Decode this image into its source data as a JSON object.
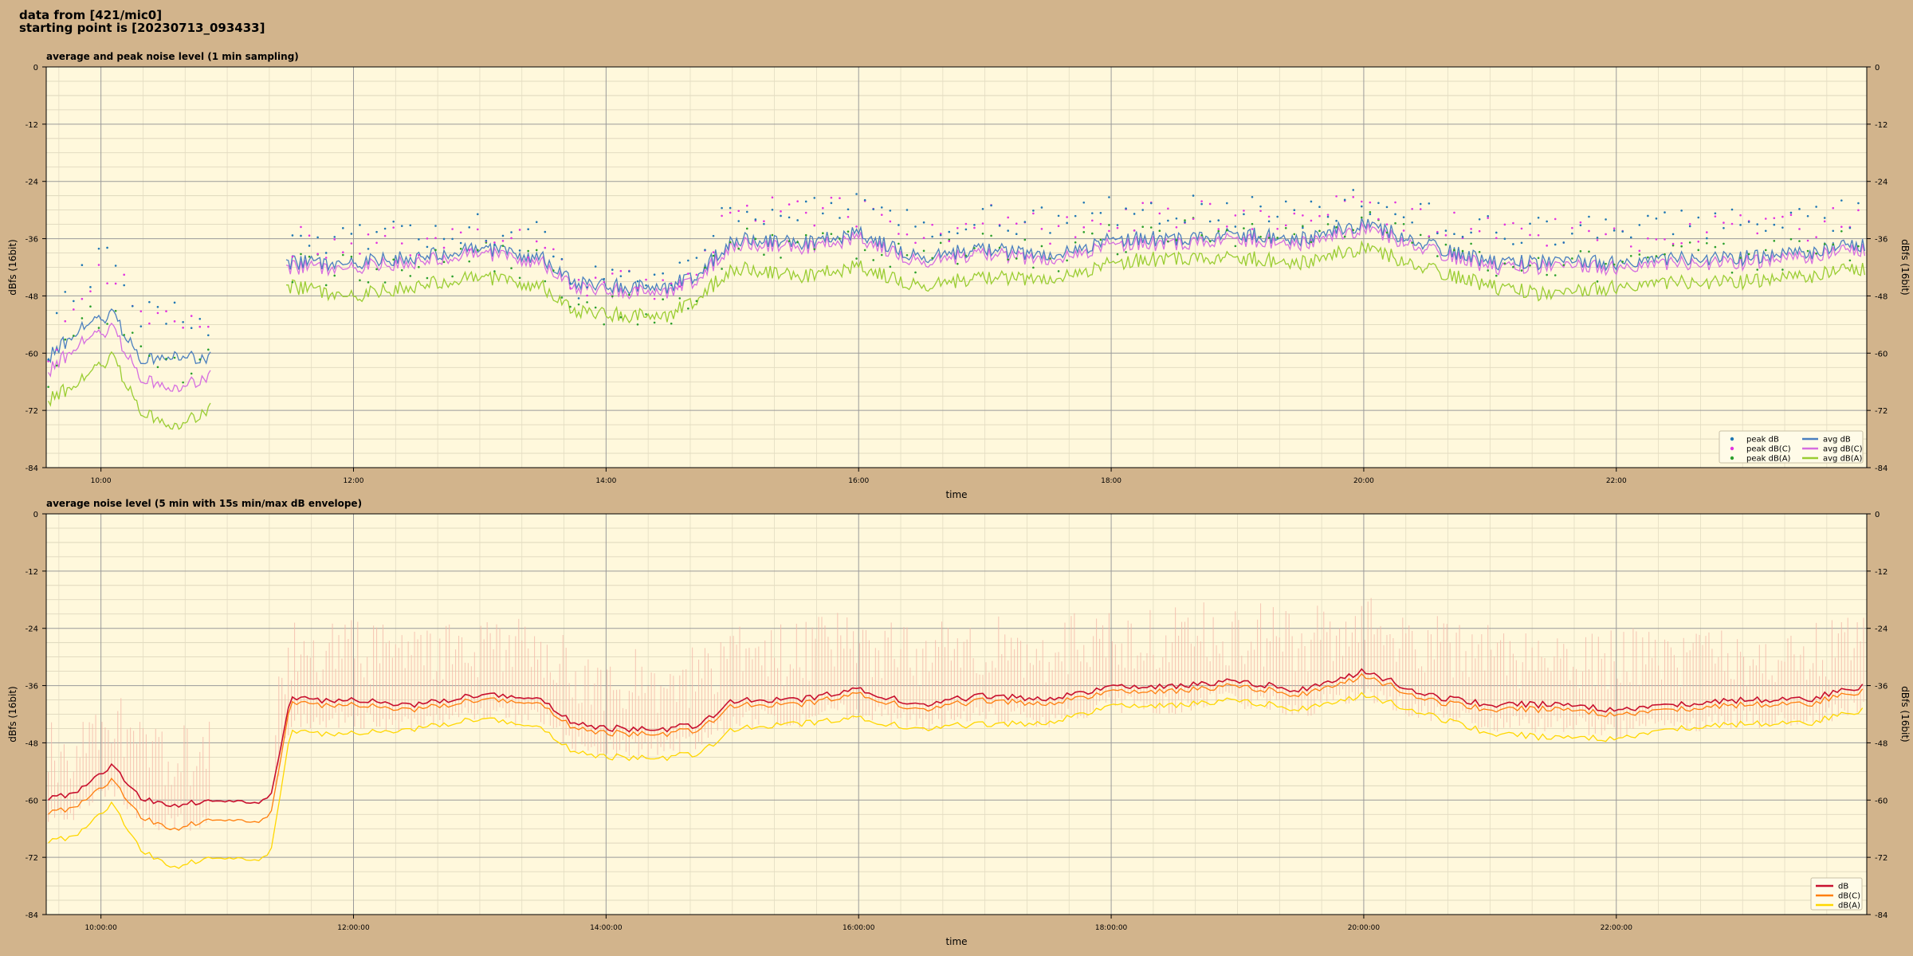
{
  "header": {
    "line1": "data from [421/mic0]",
    "line2": "starting point is [20230713_093433]"
  },
  "colors": {
    "figure_bg": "#d2b48c",
    "axes_bg": "#fff8dc",
    "peak_db": "#1f77b4",
    "peak_dbc": "#e233e0",
    "peak_dba": "#2ca02c",
    "avg_db": "#4a7fbf",
    "avg_dbc": "#d66ee0",
    "avg_dba": "#9acd32",
    "db": "#c8102e",
    "dbc": "#ff7f0e",
    "dba": "#ffd700",
    "envelope": "#f4b8a8"
  },
  "chart_data": [
    {
      "type": "line",
      "title": "average and peak noise level (1 min sampling)",
      "xlabel": "time",
      "ylabel": "dBfs (16bit)",
      "ylabel_right": "dBfs (16bit)",
      "xlim": [
        "09:34",
        "23:59"
      ],
      "ylim": [
        -84,
        0
      ],
      "yticks": [
        "0",
        "-12",
        "-24",
        "-36",
        "-48",
        "-60",
        "-72",
        "-84"
      ],
      "xticks": [
        "10:00",
        "12:00",
        "14:00",
        "16:00",
        "18:00",
        "20:00",
        "22:00"
      ],
      "grid": true,
      "legend_position": "lower-right",
      "legend_entries": [
        "peak dB",
        "peak dB(C)",
        "peak dB(A)",
        "avg dB",
        "avg dB(C)",
        "avg dB(A)"
      ],
      "x": [
        "09:35",
        "09:50",
        "10:05",
        "10:20",
        "10:35",
        "10:50",
        "11:30",
        "12:00",
        "12:30",
        "13:00",
        "13:30",
        "13:45",
        "14:00",
        "14:30",
        "14:45",
        "15:00",
        "15:30",
        "16:00",
        "16:30",
        "17:00",
        "17:30",
        "18:00",
        "18:30",
        "19:00",
        "19:30",
        "20:00",
        "20:30",
        "21:00",
        "21:30",
        "22:00",
        "22:30",
        "23:00",
        "23:30",
        "23:58"
      ],
      "series": [
        {
          "name": "avg dB",
          "style": "line",
          "values": [
            -61,
            -55,
            -52,
            -62,
            -60,
            -61,
            -41,
            -41,
            -40,
            -38,
            -40,
            -45,
            -46,
            -46,
            -43,
            -36,
            -37,
            -35,
            -40,
            -38,
            -40,
            -36,
            -36,
            -35,
            -36,
            -33,
            -37,
            -41,
            -41,
            -41,
            -40,
            -40,
            -39,
            -37
          ]
        },
        {
          "name": "avg dB(C)",
          "style": "line",
          "values": [
            -64,
            -58,
            -55,
            -66,
            -67,
            -65,
            -42,
            -42,
            -41,
            -39,
            -41,
            -46,
            -47,
            -47,
            -44,
            -37,
            -38,
            -36,
            -41,
            -39,
            -41,
            -37,
            -37,
            -36,
            -37,
            -34,
            -38,
            -42,
            -42,
            -42,
            -41,
            -41,
            -40,
            -38
          ]
        },
        {
          "name": "avg dB(A)",
          "style": "line",
          "values": [
            -70,
            -66,
            -61,
            -73,
            -75,
            -72,
            -46,
            -48,
            -46,
            -44,
            -46,
            -51,
            -52,
            -52,
            -48,
            -42,
            -44,
            -42,
            -46,
            -44,
            -45,
            -41,
            -40,
            -40,
            -41,
            -38,
            -42,
            -46,
            -48,
            -46,
            -45,
            -45,
            -44,
            -42
          ]
        },
        {
          "name": "peak dB",
          "style": "scatter",
          "values": [
            -58,
            -44,
            -40,
            -52,
            -50,
            -54,
            -36,
            -36,
            -35,
            -34,
            -36,
            -45,
            -45,
            -44,
            -40,
            -29,
            -30,
            -29,
            -33,
            -31,
            -33,
            -30,
            -30,
            -30,
            -31,
            -28,
            -31,
            -34,
            -34,
            -35,
            -33,
            -32,
            -32,
            -31
          ]
        },
        {
          "name": "peak dB(C)",
          "style": "scatter",
          "values": [
            -60,
            -46,
            -42,
            -54,
            -52,
            -56,
            -37,
            -37,
            -36,
            -35,
            -37,
            -46,
            -46,
            -45,
            -41,
            -30,
            -31,
            -30,
            -34,
            -32,
            -34,
            -31,
            -31,
            -31,
            -32,
            -29,
            -32,
            -35,
            -35,
            -36,
            -34,
            -33,
            -33,
            -32
          ]
        },
        {
          "name": "peak dB(A)",
          "style": "scatter",
          "values": [
            -66,
            -54,
            -50,
            -62,
            -64,
            -62,
            -42,
            -43,
            -41,
            -40,
            -42,
            -50,
            -51,
            -51,
            -45,
            -36,
            -38,
            -37,
            -40,
            -38,
            -40,
            -36,
            -35,
            -35,
            -36,
            -33,
            -37,
            -41,
            -43,
            -41,
            -40,
            -40,
            -39,
            -37
          ]
        }
      ]
    },
    {
      "type": "line",
      "title": "average noise level (5 min with 15s min/max dB envelope)",
      "xlabel": "time",
      "ylabel": "dBfs (16bit)",
      "ylabel_right": "dBfs (16bit)",
      "xlim": [
        "09:34",
        "23:59"
      ],
      "ylim": [
        -84,
        0
      ],
      "yticks": [
        "0",
        "-12",
        "-24",
        "-36",
        "-48",
        "-60",
        "-72",
        "-84"
      ],
      "xticks": [
        "10:00:00",
        "12:00:00",
        "14:00:00",
        "16:00:00",
        "18:00:00",
        "20:00:00",
        "22:00:00"
      ],
      "grid": true,
      "legend_position": "lower-right",
      "legend_entries": [
        "dB",
        "dB(C)",
        "dB(A)"
      ],
      "x": [
        "09:35",
        "09:50",
        "10:05",
        "10:20",
        "10:35",
        "10:50",
        "11:20",
        "11:30",
        "12:00",
        "12:30",
        "13:00",
        "13:30",
        "13:45",
        "14:00",
        "14:30",
        "14:45",
        "15:00",
        "15:30",
        "16:00",
        "16:30",
        "17:00",
        "17:30",
        "18:00",
        "18:30",
        "19:00",
        "19:30",
        "20:00",
        "20:30",
        "21:00",
        "21:30",
        "22:00",
        "22:30",
        "23:00",
        "23:30",
        "23:58"
      ],
      "series": [
        {
          "name": "dB",
          "style": "line",
          "values": [
            -60,
            -58,
            -53,
            -60,
            -61,
            -60,
            -60,
            -39,
            -39,
            -40,
            -38,
            -39,
            -44,
            -45,
            -45,
            -44,
            -39,
            -39,
            -37,
            -40,
            -38,
            -39,
            -36,
            -36,
            -35,
            -37,
            -33,
            -38,
            -40,
            -40,
            -41,
            -40,
            -39,
            -39,
            -36
          ]
        },
        {
          "name": "dB(C)",
          "style": "line",
          "values": [
            -63,
            -61,
            -56,
            -64,
            -66,
            -64,
            -64,
            -40,
            -40,
            -41,
            -39,
            -40,
            -45,
            -46,
            -46,
            -45,
            -40,
            -40,
            -38,
            -41,
            -39,
            -40,
            -37,
            -37,
            -36,
            -38,
            -34,
            -39,
            -41,
            -41,
            -42,
            -41,
            -40,
            -40,
            -37
          ]
        },
        {
          "name": "dB(A)",
          "style": "line",
          "values": [
            -69,
            -67,
            -61,
            -71,
            -74,
            -72,
            -72,
            -46,
            -46,
            -45,
            -43,
            -45,
            -50,
            -51,
            -51,
            -50,
            -45,
            -44,
            -43,
            -45,
            -44,
            -44,
            -40,
            -40,
            -39,
            -41,
            -38,
            -42,
            -46,
            -47,
            -47,
            -45,
            -44,
            -44,
            -41
          ]
        }
      ]
    }
  ]
}
